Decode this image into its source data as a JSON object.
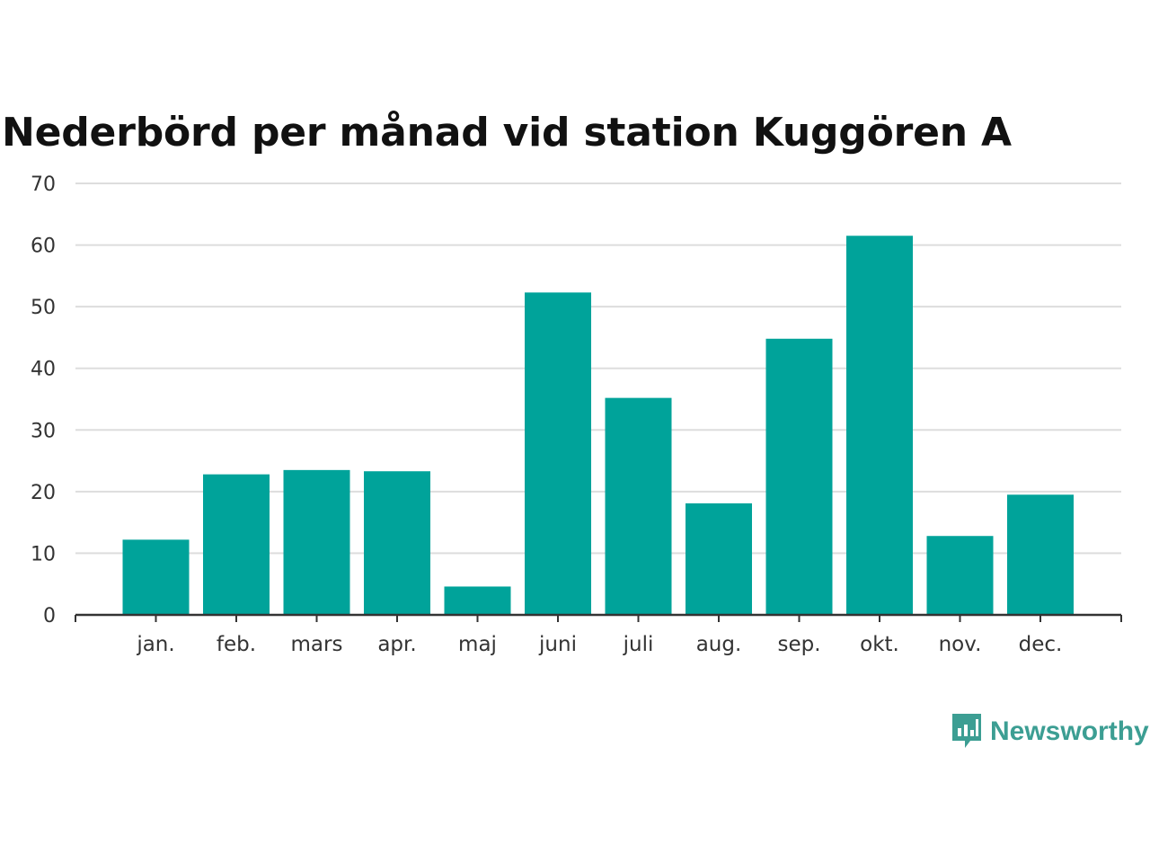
{
  "colors": {
    "bar": "#00a39a",
    "grid": "#dddddd",
    "axis": "#333333",
    "title": "#111111",
    "brand": "#3c9e93"
  },
  "brand": {
    "name": "Newsworthy",
    "icon": "newsworthy-logo-icon"
  },
  "chart_data": {
    "type": "bar",
    "title": "Nederbörd per månad vid station Kuggören A",
    "xlabel": "",
    "ylabel": "",
    "categories": [
      "jan.",
      "feb.",
      "mars",
      "apr.",
      "maj",
      "juni",
      "juli",
      "aug.",
      "sep.",
      "okt.",
      "nov.",
      "dec."
    ],
    "values": [
      12.2,
      22.8,
      23.5,
      23.3,
      4.6,
      52.3,
      35.2,
      18.1,
      44.8,
      61.5,
      12.8,
      19.5
    ],
    "ylim": [
      0,
      70
    ],
    "yticks": [
      0,
      10,
      20,
      30,
      40,
      50,
      60,
      70
    ],
    "grid": true,
    "legend": "none"
  }
}
